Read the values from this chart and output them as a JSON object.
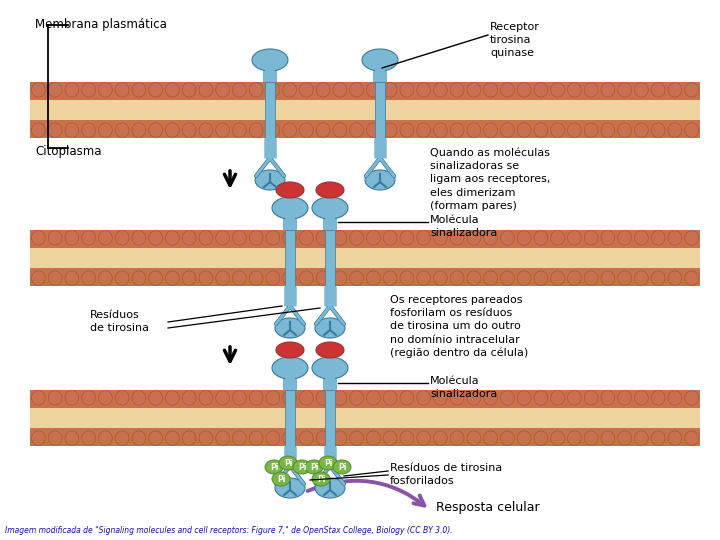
{
  "bg_color": "#ffffff",
  "membrane_color": "#c8714a",
  "membrane_inner_color": "#f0d4a0",
  "receptor_body_color": "#7ab8d4",
  "receptor_dark_color": "#3a7a9f",
  "signal_mol_color": "#cc3333",
  "phospho_color": "#7ab648",
  "arrow_color": "#000000",
  "purple_arrow_color": "#8855aa",
  "label_color": "#000000",
  "caption_full": "Imagem modificada de “Signaling molecules and cell receptors: Figure 7,” de OpenStax College, Biology (CC BY 3.0).",
  "labels": {
    "membrana": "Membrana plasmática",
    "citoplasma": "Citoplasma",
    "receptor": "Receptor\ntirosina\nquinase",
    "quando": "Quando as moléculas\nsinalizadoras se\nligam aos receptores,\neles dimerizam\n(formam pares)",
    "molecula1": "Molécula\nsinalizadora",
    "residuos": "Resíduos\nde tirosina",
    "os_receptores": "Os receptores pareados\nfosforilam os resíduos\nde tirosina um do outro\nno domínio intracelular\n(região dentro da célula)",
    "molecula2": "Molécula\nsinalizadora",
    "residuos2": "Resíduos de tirosina\nfosforilados",
    "resposta": "Resposta celular"
  },
  "figsize": [
    7.2,
    5.4
  ],
  "dpi": 100
}
